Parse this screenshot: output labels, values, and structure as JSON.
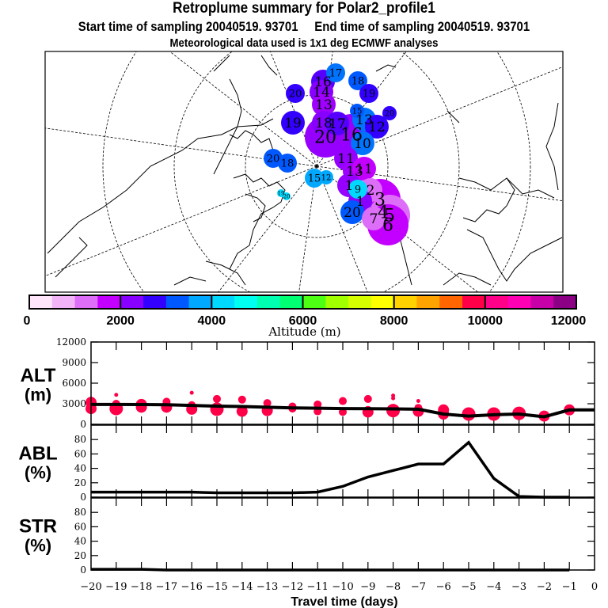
{
  "header": {
    "title": "Retroplume summary for Polar2_profile1",
    "subtitle": "Start time of sampling 20040519. 93701     End time of sampling 20040519. 93701",
    "met_note": "Meteorological data used is 1x1 deg ECMWF analyses"
  },
  "colorbar": {
    "label": "Altitude (m)",
    "ticks": [
      "0",
      "2000",
      "4000",
      "6000",
      "8000",
      "10000",
      "12000"
    ],
    "range": [
      0,
      12000
    ],
    "colors": [
      "#ffe6fa",
      "#f2b4f7",
      "#dc6ef7",
      "#c300ff",
      "#8800ff",
      "#3300ff",
      "#0059ff",
      "#00a8ff",
      "#00d9ff",
      "#00fff0",
      "#00ffb0",
      "#00ff73",
      "#4dff12",
      "#a2ff00",
      "#d6ff00",
      "#ffff00",
      "#ffd200",
      "#ffa300",
      "#ff6600",
      "#ff0048",
      "#ff0088",
      "#ff00b4",
      "#c800a8",
      "#8c0085"
    ]
  },
  "map": {
    "clusters": [
      {
        "label": "17",
        "color": "#0073ff",
        "size": "m"
      },
      {
        "label": "16",
        "color": "#5500ff",
        "size": "l"
      },
      {
        "label": "18",
        "color": "#0059ff",
        "size": "m"
      },
      {
        "label": "20",
        "color": "#3300ff",
        "size": "m"
      },
      {
        "label": "14",
        "color": "#8800ff",
        "size": "l"
      },
      {
        "label": "19",
        "color": "#3300ff",
        "size": "m"
      },
      {
        "label": "13",
        "color": "#a000ff",
        "size": "l"
      },
      {
        "label": "15",
        "color": "#0059ff",
        "size": "s"
      },
      {
        "label": "20",
        "color": "#3300ff",
        "size": "s"
      },
      {
        "label": "19",
        "color": "#3300ff",
        "size": "l"
      },
      {
        "label": "18",
        "color": "#8800ff",
        "size": "l"
      },
      {
        "label": "17",
        "color": "#5500ff",
        "size": "l"
      },
      {
        "label": "13",
        "color": "#0073ff",
        "size": "l"
      },
      {
        "label": "12",
        "color": "#3300ff",
        "size": "l"
      },
      {
        "label": "20",
        "color": "#9500ff",
        "size": "xl"
      },
      {
        "label": "16",
        "color": "#9500ff",
        "size": "xl"
      },
      {
        "label": "10",
        "color": "#0073ff",
        "size": "l"
      },
      {
        "label": "20",
        "color": "#0059ff",
        "size": "m"
      },
      {
        "label": "18",
        "color": "#0059ff",
        "size": "m"
      },
      {
        "label": "11",
        "color": "#9500ff",
        "size": "l"
      },
      {
        "label": "13",
        "color": "#a000ff",
        "size": "l"
      },
      {
        "label": "11",
        "color": "#c300ff",
        "size": "l"
      },
      {
        "label": "15",
        "color": "#00a8ff",
        "size": "m"
      },
      {
        "label": "12",
        "color": "#00a8ff",
        "size": "s"
      },
      {
        "label": "1",
        "color": "#9500ff",
        "size": "l"
      },
      {
        "label": "9",
        "color": "#00d9ff",
        "size": "m"
      },
      {
        "label": "2",
        "color": "#dc6ef7",
        "size": "l"
      },
      {
        "label": "1",
        "color": "#8800ff",
        "size": "l"
      },
      {
        "label": "20",
        "color": "#0059ff",
        "size": "l"
      },
      {
        "label": "3",
        "color": "#c300ff",
        "size": "xl"
      },
      {
        "label": "4",
        "color": "#c300ff",
        "size": "xl"
      },
      {
        "label": "5",
        "color": "#dc6ef7",
        "size": "xl"
      },
      {
        "label": "6",
        "color": "#c300ff",
        "size": "xl"
      },
      {
        "label": "7",
        "color": "#dc6ef7",
        "size": "l"
      },
      {
        "label": "19",
        "color": "#00d9ff",
        "size": "xs"
      },
      {
        "label": "20",
        "color": "#00d9ff",
        "size": "xs"
      }
    ]
  },
  "chart_data": [
    {
      "type": "scatter+line",
      "panel": "ALT",
      "ylabel_line1": "ALT",
      "ylabel_line2": "(m)",
      "ylim": [
        0,
        12000
      ],
      "yticks": [
        "0",
        "3000",
        "6000",
        "9000",
        "12000"
      ],
      "xlim": [
        -20,
        0
      ],
      "line_x": [
        -20,
        -19,
        -18,
        -17,
        -16,
        -15,
        -14,
        -13,
        -12,
        -11,
        -10,
        -9,
        -8,
        -7,
        -6,
        -5,
        -4,
        -3,
        -2,
        -1,
        0
      ],
      "line_y": [
        2900,
        2900,
        2880,
        2850,
        2750,
        2650,
        2600,
        2500,
        2400,
        2350,
        2300,
        2280,
        2250,
        2200,
        1500,
        1200,
        1400,
        1500,
        1100,
        2100,
        2100
      ],
      "points": [
        {
          "x": -20,
          "y": 3200,
          "r": "m"
        },
        {
          "x": -20,
          "y": 2300,
          "r": "m"
        },
        {
          "x": -19,
          "y": 4300,
          "r": "xs"
        },
        {
          "x": -19,
          "y": 3000,
          "r": "s"
        },
        {
          "x": -19,
          "y": 2300,
          "r": "l"
        },
        {
          "x": -18,
          "y": 2900,
          "r": "m"
        },
        {
          "x": -18,
          "y": 2500,
          "r": "m"
        },
        {
          "x": -17,
          "y": 3300,
          "r": "s"
        },
        {
          "x": -17,
          "y": 2500,
          "r": "m"
        },
        {
          "x": -16,
          "y": 4600,
          "r": "xs"
        },
        {
          "x": -16,
          "y": 2800,
          "r": "s"
        },
        {
          "x": -16,
          "y": 2200,
          "r": "m"
        },
        {
          "x": -15,
          "y": 3700,
          "r": "s"
        },
        {
          "x": -15,
          "y": 2200,
          "r": "l"
        },
        {
          "x": -14,
          "y": 3600,
          "r": "s"
        },
        {
          "x": -14,
          "y": 1900,
          "r": "m"
        },
        {
          "x": -13,
          "y": 3100,
          "r": "s"
        },
        {
          "x": -13,
          "y": 2000,
          "r": "m"
        },
        {
          "x": -12,
          "y": 2600,
          "r": "s"
        },
        {
          "x": -12,
          "y": 2300,
          "r": "s"
        },
        {
          "x": -11,
          "y": 2900,
          "r": "s"
        },
        {
          "x": -11,
          "y": 1900,
          "r": "s"
        },
        {
          "x": -10,
          "y": 3400,
          "r": "s"
        },
        {
          "x": -10,
          "y": 1800,
          "r": "s"
        },
        {
          "x": -9,
          "y": 3700,
          "r": "s"
        },
        {
          "x": -9,
          "y": 2100,
          "r": "s"
        },
        {
          "x": -9,
          "y": 1800,
          "r": "m"
        },
        {
          "x": -8,
          "y": 4200,
          "r": "xs"
        },
        {
          "x": -8,
          "y": 3800,
          "r": "xs"
        },
        {
          "x": -8,
          "y": 2000,
          "r": "l"
        },
        {
          "x": -7,
          "y": 3400,
          "r": "xs"
        },
        {
          "x": -7,
          "y": 2400,
          "r": "s"
        },
        {
          "x": -7,
          "y": 1900,
          "r": "m"
        },
        {
          "x": -6,
          "y": 2100,
          "r": "m"
        },
        {
          "x": -6,
          "y": 1500,
          "r": "m"
        },
        {
          "x": -5,
          "y": 1500,
          "r": "l"
        },
        {
          "x": -4,
          "y": 1500,
          "r": "l"
        },
        {
          "x": -3,
          "y": 1600,
          "r": "l"
        },
        {
          "x": -2,
          "y": 1200,
          "r": "m"
        },
        {
          "x": -1,
          "y": 2100,
          "r": "m"
        }
      ]
    },
    {
      "type": "line",
      "panel": "ABL",
      "ylabel_line1": "ABL",
      "ylabel_line2": "(%)",
      "ylim": [
        0,
        100
      ],
      "yticks": [
        "0",
        "20",
        "40",
        "60",
        "80"
      ],
      "xlim": [
        -20,
        0
      ],
      "x": [
        -20,
        -19,
        -18,
        -17,
        -16,
        -15,
        -14,
        -13,
        -12,
        -11,
        -10,
        -9,
        -8,
        -7,
        -6,
        -5,
        -4,
        -3,
        -2,
        -1
      ],
      "y": [
        7,
        7,
        7,
        7,
        7,
        6,
        6,
        6,
        6,
        7,
        15,
        28,
        37,
        46,
        46,
        76,
        26,
        1,
        0,
        0
      ]
    },
    {
      "type": "line",
      "panel": "STR",
      "ylabel_line1": "STR",
      "ylabel_line2": "(%)",
      "ylim": [
        0,
        100
      ],
      "yticks": [
        "0",
        "20",
        "40",
        "60",
        "80"
      ],
      "xlim": [
        -20,
        0
      ],
      "x": [
        -20,
        -19,
        -18,
        -17,
        -16,
        -15,
        -14,
        -13,
        -12,
        -11,
        -10,
        -9,
        -8,
        -7,
        -6,
        -5,
        -4,
        -3,
        -2,
        -1
      ],
      "y": [
        1,
        1,
        1,
        0,
        0,
        0,
        0,
        0,
        0,
        0,
        0,
        0,
        0,
        0,
        0,
        0,
        0,
        0,
        0,
        0
      ]
    }
  ],
  "xaxis": {
    "label": "Travel time (days)",
    "ticks": [
      "−20",
      "−19",
      "−18",
      "−17",
      "−16",
      "−15",
      "−14",
      "−13",
      "−12",
      "−11",
      "−10",
      "−9",
      "−8",
      "−7",
      "−6",
      "−5",
      "−4",
      "−3",
      "−2",
      "−1",
      "0"
    ]
  }
}
